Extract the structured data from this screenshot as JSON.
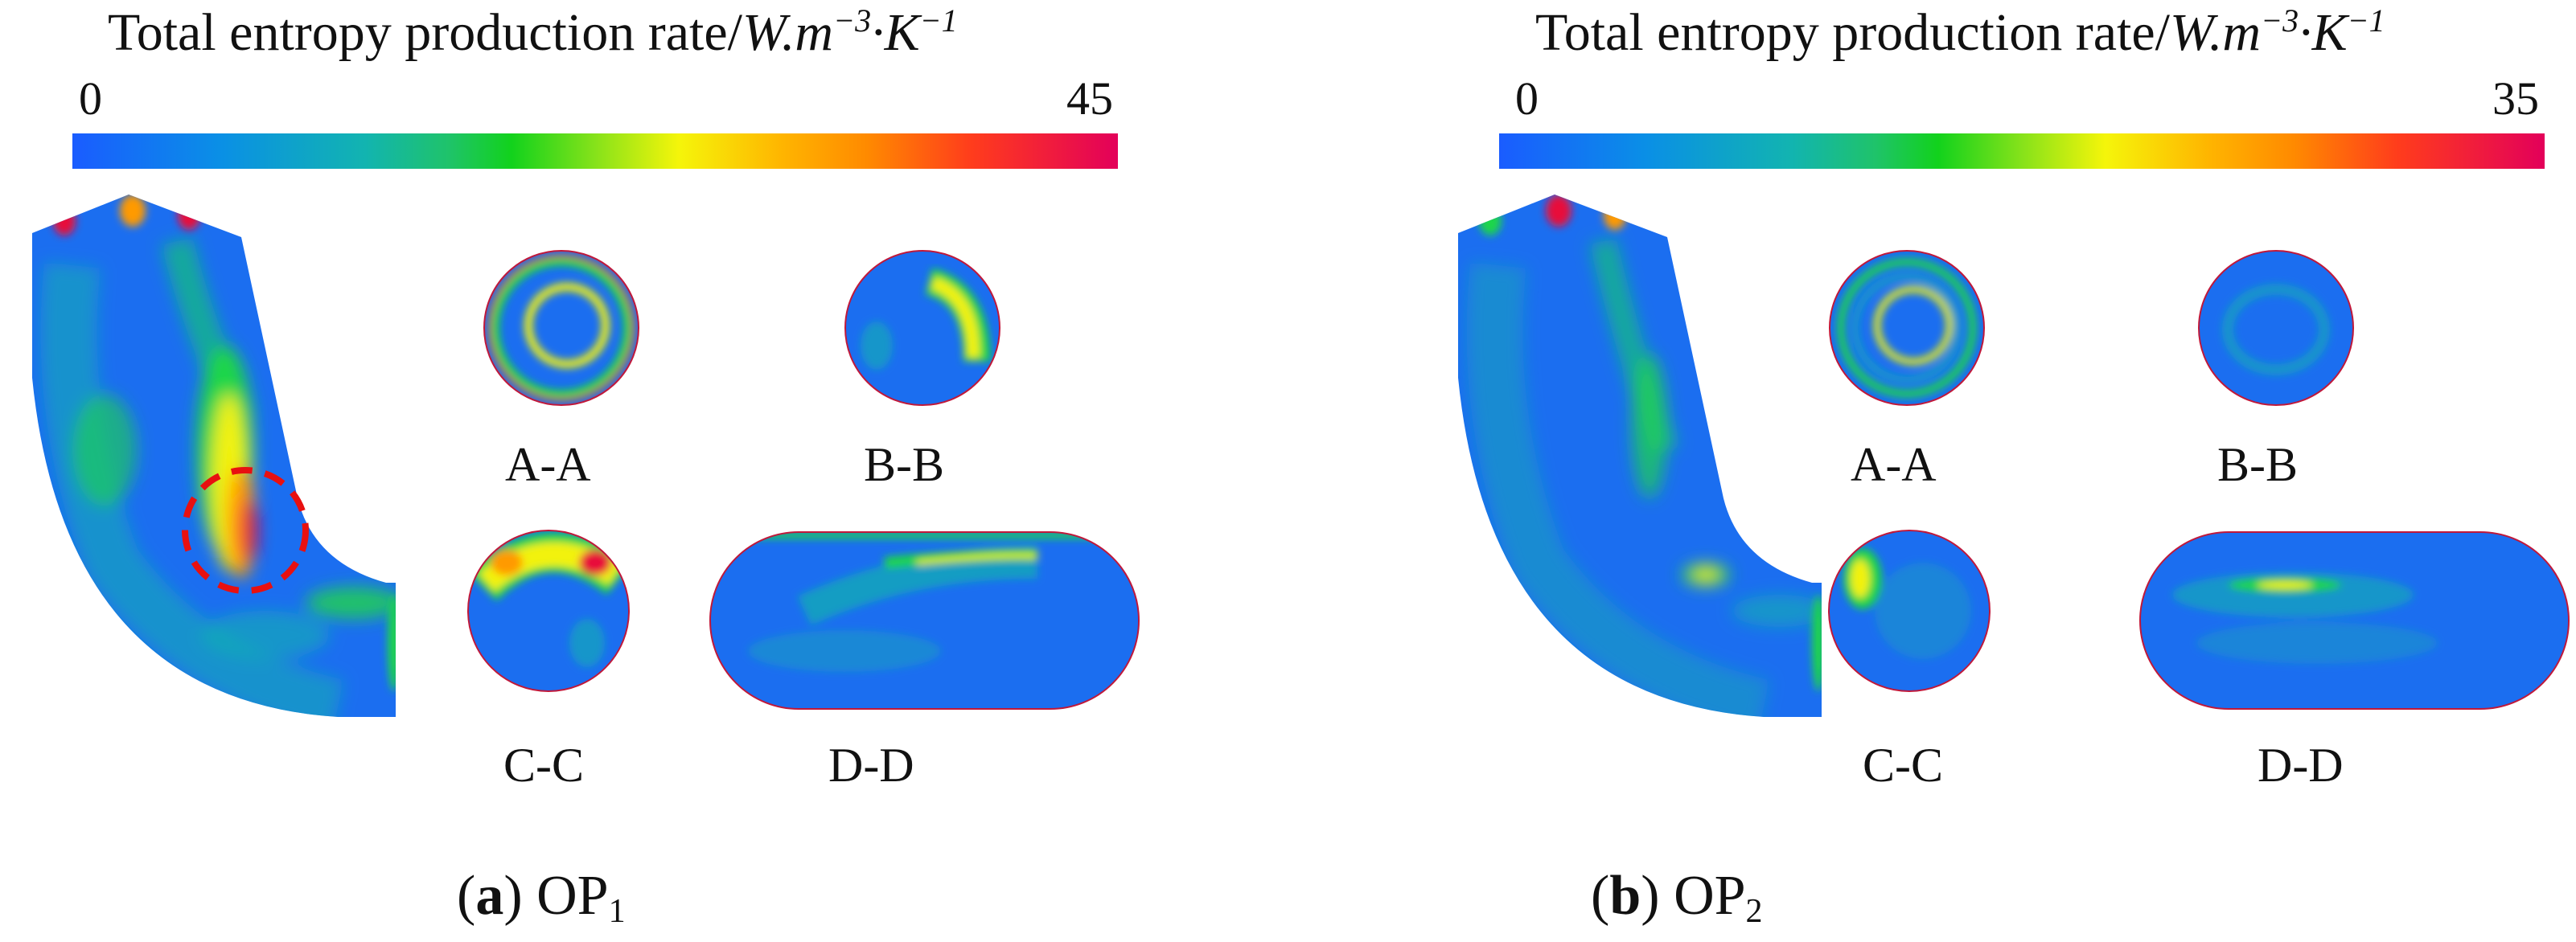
{
  "panels": [
    {
      "colorbar": {
        "title_text": "Total entropy production rate/",
        "unit_w": "W",
        "unit_m": ".m",
        "exp_m": "−3",
        "unit_k": "·K",
        "exp_k": "−1",
        "min": "0",
        "max": "45"
      },
      "sections": [
        "A-A",
        "B-B",
        "C-C",
        "D-D"
      ],
      "caption": {
        "letter": "a",
        "name": "OP",
        "subscript": "1"
      }
    },
    {
      "colorbar": {
        "title_text": "Total entropy production rate/",
        "unit_w": "W",
        "unit_m": ".m",
        "exp_m": "−3",
        "unit_k": "·K",
        "exp_k": "−1",
        "min": "0",
        "max": "35"
      },
      "sections": [
        "A-A",
        "B-B",
        "C-C",
        "D-D"
      ],
      "caption": {
        "letter": "b",
        "name": "OP",
        "subscript": "2"
      }
    }
  ],
  "colors": {
    "field_base": "#1b6ef0",
    "field_mid": "#12b0b0",
    "field_green": "#1fd64a",
    "field_yellow": "#f2f20a",
    "field_orange": "#ff9a00",
    "field_red": "#e8103a",
    "highlight_circle": "#e81010"
  }
}
